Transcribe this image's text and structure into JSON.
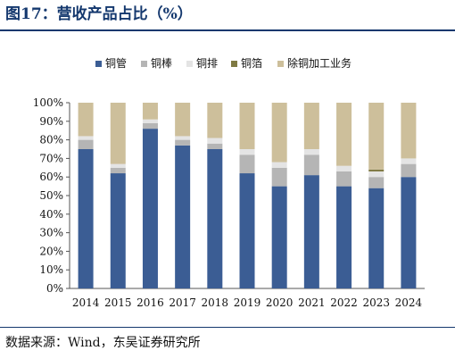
{
  "title": "图17：营收产品占比（%）",
  "source": "数据来源：Wind，东吴证券研究所",
  "colors": {
    "铜管": "#3b5d94",
    "铜棒": "#b5b5b5",
    "铜排": "#e4e4e4",
    "铜箔": "#7f7a43",
    "除铜加工业务": "#cdbf9b"
  },
  "chart_data": {
    "type": "bar",
    "stacked": true,
    "categories": [
      "2014",
      "2015",
      "2016",
      "2017",
      "2018",
      "2019",
      "2020",
      "2021",
      "2022",
      "2023",
      "2024"
    ],
    "series": [
      {
        "name": "铜管",
        "values": [
          75,
          62,
          86,
          77,
          75,
          62,
          55,
          61,
          55,
          54,
          60
        ]
      },
      {
        "name": "铜棒",
        "values": [
          5,
          3,
          3,
          3,
          3,
          10,
          10,
          11,
          8,
          6,
          7
        ]
      },
      {
        "name": "铜排",
        "values": [
          2,
          2,
          2,
          2,
          3,
          3,
          3,
          3,
          3,
          3,
          3
        ]
      },
      {
        "name": "铜箔",
        "values": [
          0,
          0,
          0,
          0,
          0,
          0,
          0,
          0,
          0,
          1,
          0
        ]
      },
      {
        "name": "除铜加工业务",
        "values": [
          18,
          33,
          9,
          18,
          19,
          25,
          32,
          25,
          34,
          36,
          30
        ]
      }
    ],
    "ylim": [
      0,
      100
    ],
    "yticks": [
      "0%",
      "10%",
      "20%",
      "30%",
      "40%",
      "50%",
      "60%",
      "70%",
      "80%",
      "90%",
      "100%"
    ],
    "legend": "top-center",
    "grid": false
  }
}
